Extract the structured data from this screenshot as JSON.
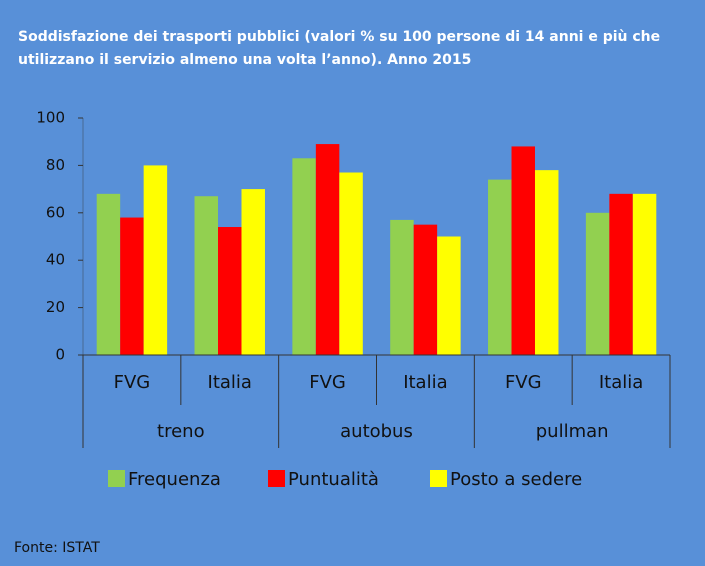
{
  "chart_data": {
    "type": "bar",
    "title": [
      "Soddisfazione dei trasporti pubblici (valori % su 100 persone di 14 anni e più che",
      "utilizzano il servizio almeno una volta l’anno). Anno 2015"
    ],
    "groups": [
      {
        "label": "treno",
        "categories": [
          "FVG",
          "Italia"
        ]
      },
      {
        "label": "autobus",
        "categories": [
          "FVG",
          "Italia"
        ]
      },
      {
        "label": "pullman",
        "categories": [
          "FVG",
          "Italia"
        ]
      }
    ],
    "series": [
      {
        "name": "Frequenza",
        "color": "#92d050",
        "values": [
          68,
          67,
          83,
          57,
          74,
          60
        ]
      },
      {
        "name": "Puntualità",
        "color": "#ff0000",
        "values": [
          58,
          54,
          89,
          55,
          88,
          68
        ]
      },
      {
        "name": "Posto a sedere",
        "color": "#ffff00",
        "values": [
          80,
          70,
          77,
          50,
          78,
          68
        ]
      }
    ],
    "ylim": [
      0,
      100
    ],
    "yticks": [
      0,
      20,
      40,
      60,
      80,
      100
    ],
    "source": "Fonte: ISTAT"
  }
}
